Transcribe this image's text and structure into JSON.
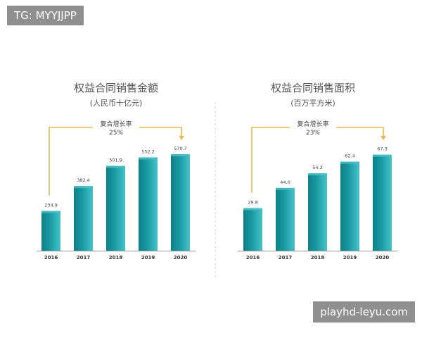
{
  "watermarks": {
    "top": "TG: MYYJJPP",
    "bottom": "playhd-leyu.com"
  },
  "colors": {
    "bar": "#1a9aa3",
    "bar_dark": "#0f7f87",
    "bar_light": "#45c3ca",
    "arrow": "#e8b84a",
    "divider": "#cfcfcf",
    "axis": "#9a9a9a",
    "title": "#555555",
    "label": "#444444"
  },
  "chart_data": [
    {
      "type": "bar",
      "title": "权益合同销售金额",
      "subtitle": "(人民币十亿元)",
      "categories": [
        "2016",
        "2017",
        "2018",
        "2019",
        "2020"
      ],
      "values": [
        234.9,
        382.4,
        501.9,
        552.2,
        570.7
      ],
      "value_labels": [
        "234.9",
        "382.4",
        "501.9",
        "552.2",
        "570.7"
      ],
      "ylim": [
        0,
        650
      ],
      "annotation": {
        "label": "复合增长率",
        "value": "25%"
      }
    },
    {
      "type": "bar",
      "title": "权益合同销售面积",
      "subtitle": "(百万平方米)",
      "categories": [
        "2016",
        "2017",
        "2018",
        "2019",
        "2020"
      ],
      "values": [
        29.8,
        44.0,
        54.2,
        62.4,
        67.3
      ],
      "value_labels": [
        "29.8",
        "44.0",
        "54.2",
        "62.4",
        "67.3"
      ],
      "ylim": [
        0,
        77
      ],
      "annotation": {
        "label": "复合增长率",
        "value": "23%"
      }
    }
  ]
}
